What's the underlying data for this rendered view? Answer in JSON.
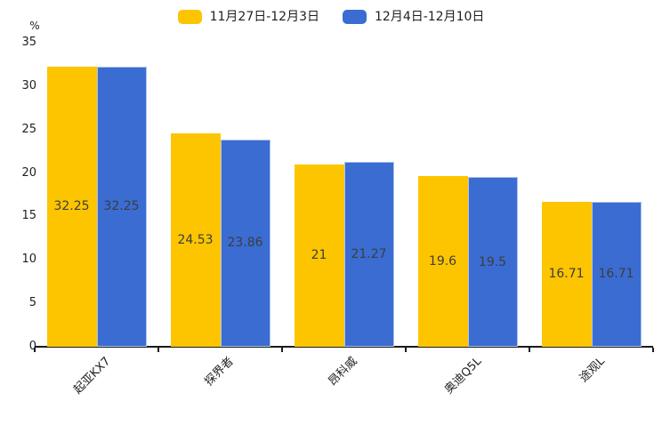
{
  "chart_data": {
    "type": "bar",
    "title": "",
    "xlabel": "",
    "ylabel": "%",
    "ylim": [
      0,
      35
    ],
    "yticks": [
      0,
      5,
      10,
      15,
      20,
      25,
      30,
      35
    ],
    "grid": false,
    "legend_position": "top",
    "categories": [
      "起亚KX7",
      "探界者",
      "昂科威",
      "奥迪Q5L",
      "途观L"
    ],
    "series": [
      {
        "name": "11月27日-12月3日",
        "color": "#FDC500",
        "values": [
          32.25,
          24.53,
          21,
          19.6,
          16.71
        ],
        "labels": [
          "32.25",
          "24.53",
          "21",
          "19.6",
          "16.71"
        ]
      },
      {
        "name": "12月4日-12月10日",
        "color": "#3A6CD2",
        "border_color": "#AFC4EE",
        "values": [
          32.25,
          23.86,
          21.27,
          19.5,
          16.71
        ],
        "labels": [
          "32.25",
          "23.86",
          "21.27",
          "19.5",
          "16.71"
        ]
      }
    ],
    "label_color": "#3d3d3d",
    "axis_color": "#1a1a1a"
  }
}
